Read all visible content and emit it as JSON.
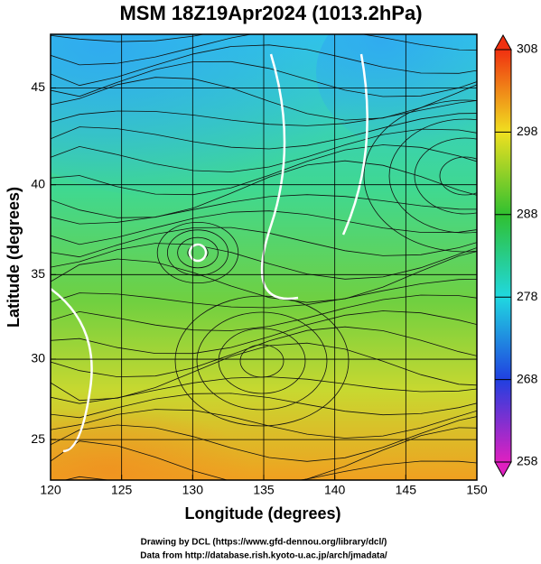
{
  "map": {
    "title": "MSM 18Z19Apr2024 (1013.2hPa)",
    "x_label": "Longitude (degrees)",
    "y_label": "Latitude  (degrees)",
    "projection": "mercator",
    "xlim": [
      120,
      150
    ],
    "ylim": [
      22.4,
      47.6
    ],
    "xticks": [
      120,
      125,
      130,
      135,
      140,
      145,
      150
    ],
    "yticks": [
      25,
      30,
      35,
      40,
      45
    ],
    "grid": true,
    "colorbar": {
      "lim": [
        258,
        308
      ],
      "ticks": [
        258,
        268,
        278,
        288,
        298,
        308
      ],
      "colors": [
        "#e020c0",
        "#2040e0",
        "#20d8e0",
        "#30c030",
        "#f0e020",
        "#f03010"
      ]
    },
    "footer": [
      "Drawing by DCL (https://www.gfd-dennou.org/library/dcl/)",
      "Data from http://database.rish.kyoto-u.ac.jp/arch/jmadata/"
    ]
  }
}
